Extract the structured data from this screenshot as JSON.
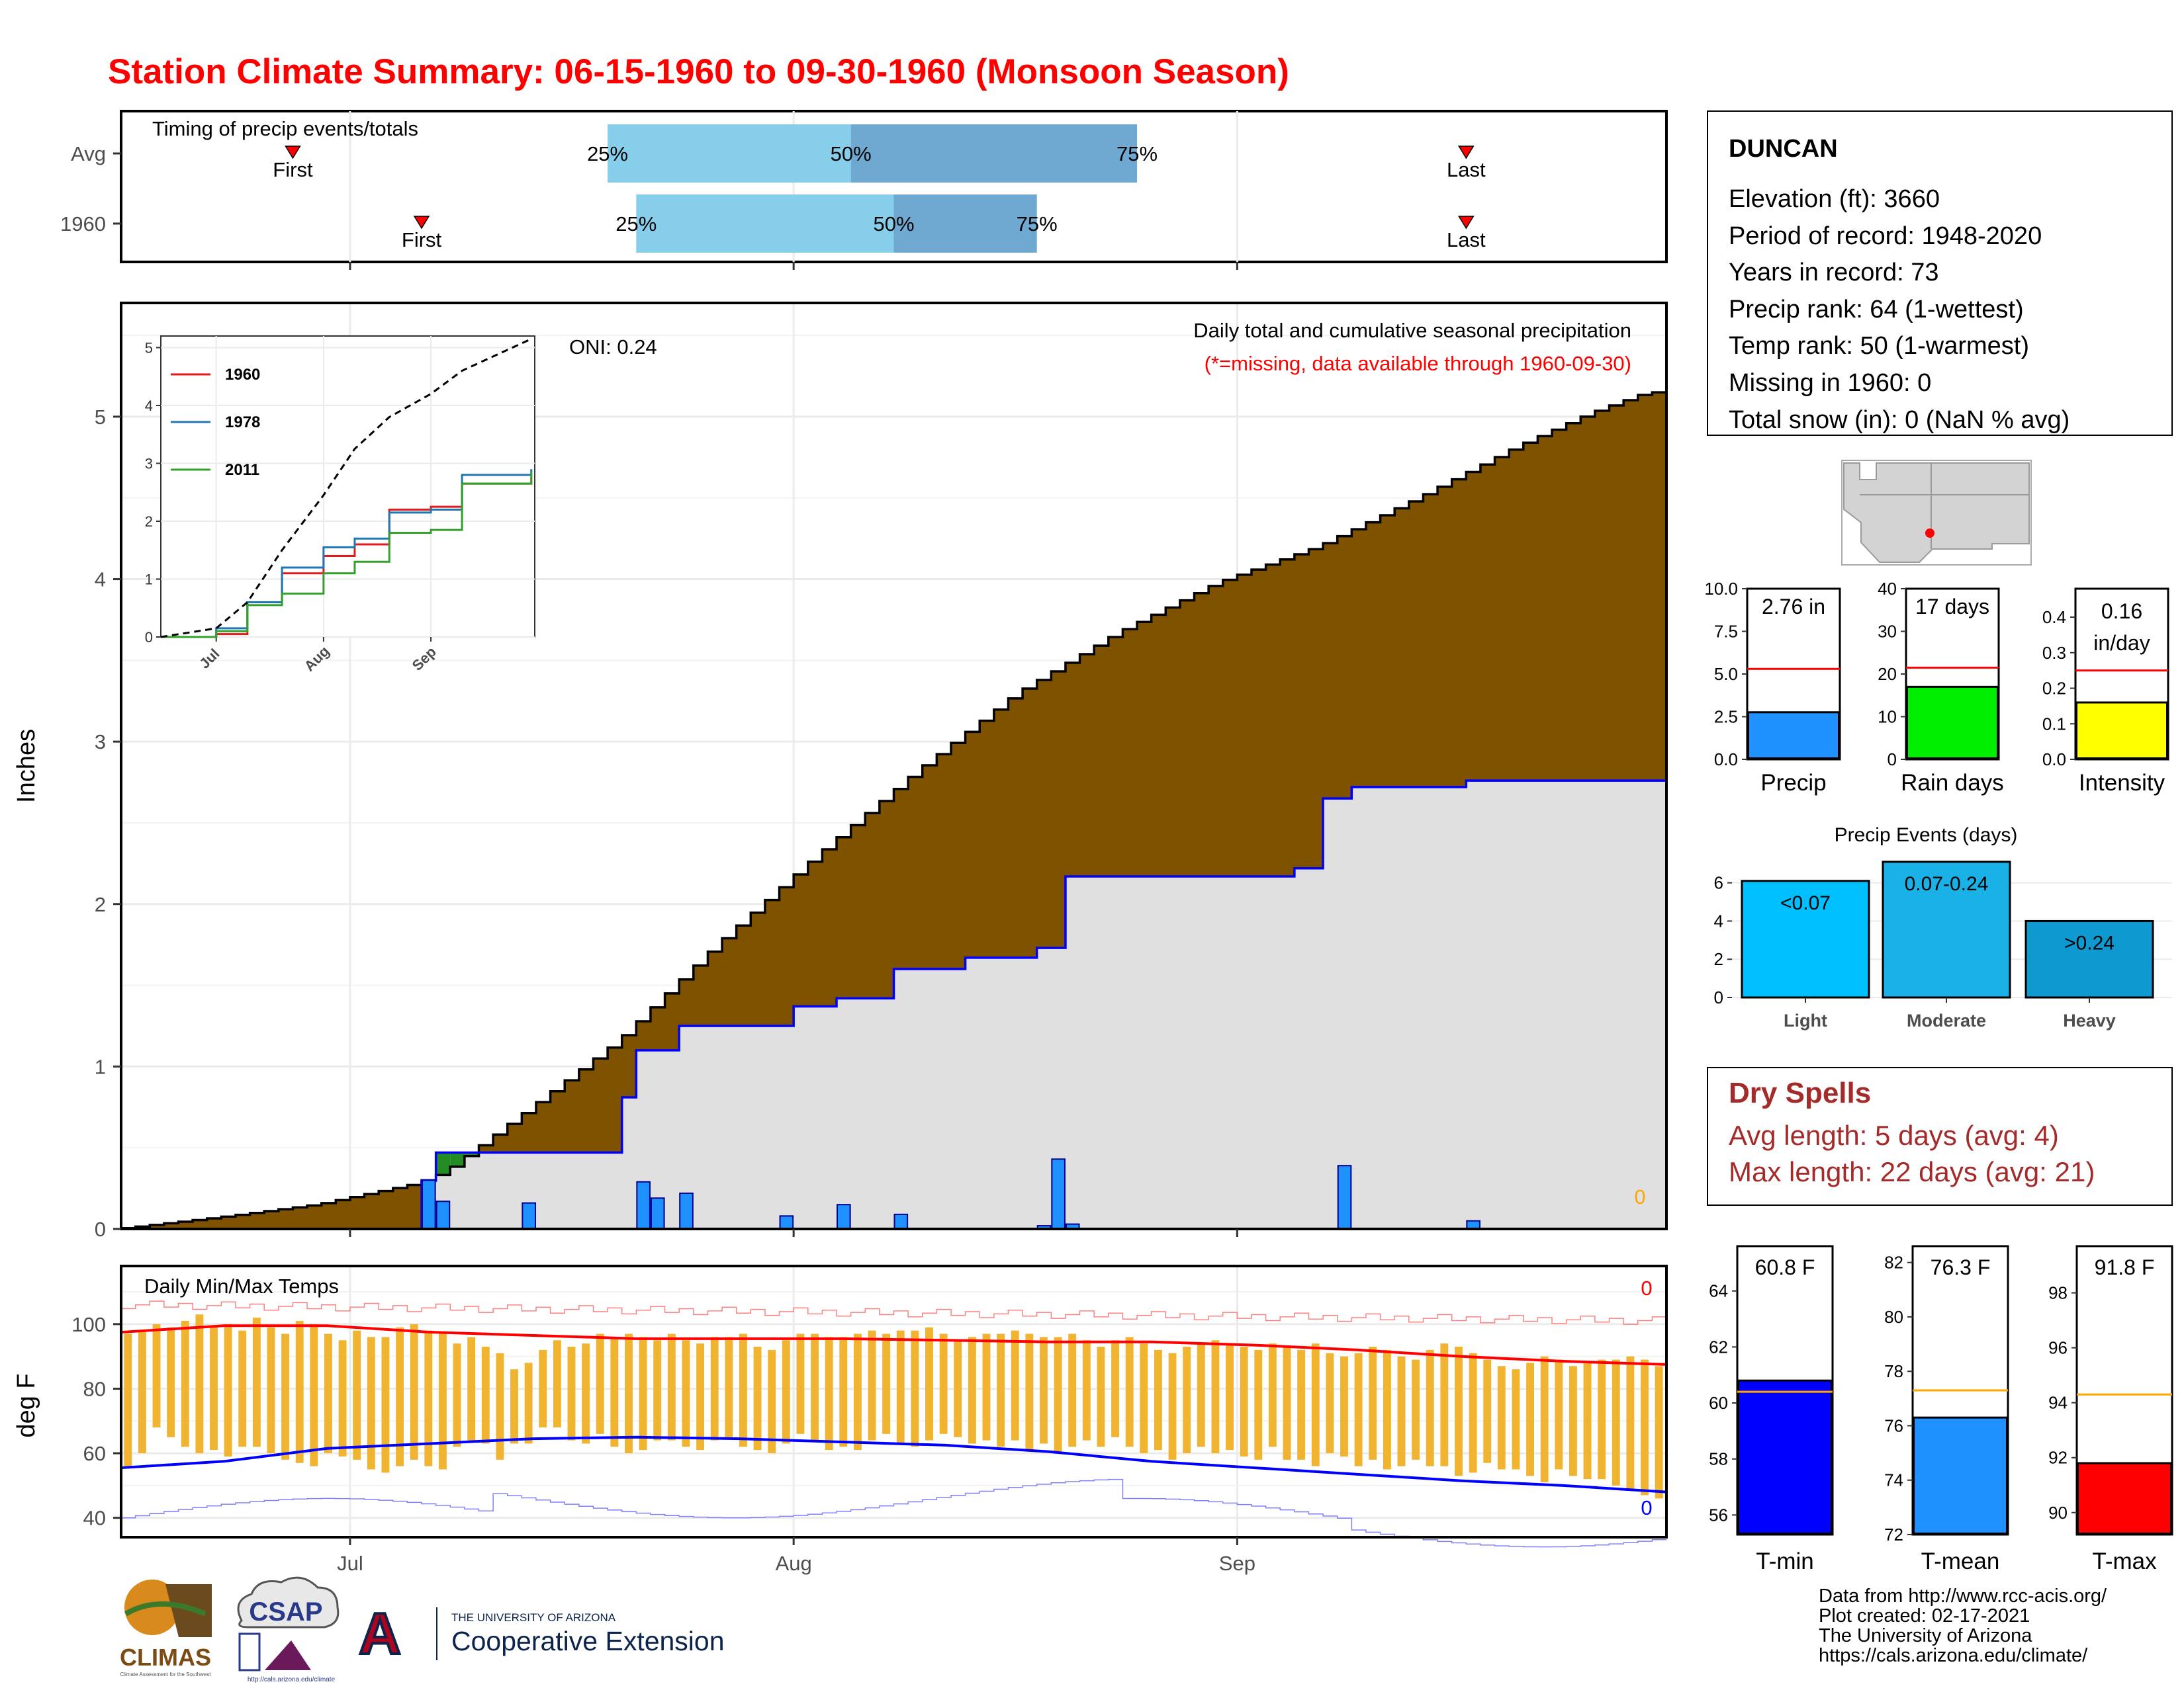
{
  "title": "Station Climate Summary: 06-15-1960 to 09-30-1960 (Monsoon Season)",
  "colors": {
    "title": "#ff0000",
    "cumulative_avg_fill": "#7f5200",
    "cumulative_year_fill": "#e0e0e0",
    "cumulative_year_line": "#0000ff",
    "daily_bar": "#1e90ff",
    "early_excess": "#228b22",
    "temp_bar": "#f0b431",
    "tmax_line": "#ff0000",
    "tmin_line": "#0000ff",
    "quartile_light": "#87ceeb",
    "quartile_dark": "#6fa8d0",
    "dry_spell_text": "#a52a2a"
  },
  "timing_panel": {
    "label": "Timing of precip events/totals",
    "rows": [
      {
        "name": "Avg",
        "first": "06-27",
        "q25": "07-19",
        "q50": "08-05",
        "q75": "08-25",
        "last": "09-17"
      },
      {
        "name": "1960",
        "first": "07-06",
        "q25": "07-21",
        "q50": "08-08",
        "q75": "08-18",
        "last": "09-17"
      }
    ],
    "first_label": "First",
    "last_label": "Last",
    "q25_label": "25%",
    "q50_label": "50%",
    "q75_label": "75%"
  },
  "station": {
    "name": "DUNCAN",
    "lines": [
      "Elevation (ft): 3660",
      "Period of record: 1948-2020",
      "Years in record: 73",
      "Precip rank: 64 (1-wettest)",
      "Temp rank: 50 (1-warmest)",
      "Missing in 1960: 0",
      "Total snow (in): 0 (NaN % avg)"
    ]
  },
  "precip_panel": {
    "ylabel": "Inches",
    "yticks": [
      0,
      1,
      2,
      3,
      4,
      5
    ],
    "oni": "ONI: 0.24",
    "subtitle": "Daily total and cumulative seasonal precipitation",
    "missing_note": "(*=missing, data available through 1960-09-30)",
    "missing_count": "0"
  },
  "inset": {
    "legend": [
      "1960",
      "1978",
      "2011"
    ],
    "legend_colors": [
      "#e31a1c",
      "#1f78b4",
      "#33a02c"
    ],
    "yticks": [
      "0",
      "1",
      "2",
      "3",
      "4",
      "5"
    ],
    "xticks": [
      "Jul",
      "Aug",
      "Sep"
    ]
  },
  "mini_bars": [
    {
      "label": "Precip",
      "value_text": "2.76 in",
      "value": 2.76,
      "avg": 5.3,
      "ymax": 10.0,
      "yticks": [
        "0.0",
        "2.5",
        "5.0",
        "7.5",
        "10.0"
      ],
      "tickvals": [
        0,
        2.5,
        5,
        7.5,
        10
      ],
      "color": "#1e90ff"
    },
    {
      "label": "Rain days",
      "value_text": "17 days",
      "value": 17,
      "avg": 21.5,
      "ymax": 40,
      "yticks": [
        "0",
        "10",
        "20",
        "30",
        "40"
      ],
      "tickvals": [
        0,
        10,
        20,
        30,
        40
      ],
      "color": "#00ee00"
    },
    {
      "label": "Intensity",
      "value_text": "0.16",
      "value_text2": "in/day",
      "value": 0.16,
      "avg": 0.25,
      "ymax": 0.48,
      "yticks": [
        "0.0",
        "0.1",
        "0.2",
        "0.3",
        "0.4"
      ],
      "tickvals": [
        0,
        0.1,
        0.2,
        0.3,
        0.4
      ],
      "color": "#ffff00"
    }
  ],
  "events": {
    "title": "Precip Events (days)",
    "yticks": [
      "0",
      "2",
      "4",
      "6"
    ],
    "bars": [
      {
        "label": "Light",
        "range": "<0.07",
        "value": 6.1,
        "color": "#00bfff"
      },
      {
        "label": "Moderate",
        "range": "0.07-0.24",
        "value": 7.1,
        "color": "#1ab2e6"
      },
      {
        "label": "Heavy",
        "range": ">0.24",
        "value": 4.0,
        "color": "#0e9ad0"
      }
    ]
  },
  "dry_spells": {
    "title": "Dry Spells",
    "avg_line": "Avg length: 5 days (avg: 4)",
    "max_line": "Max length: 22 days (avg: 21)"
  },
  "temp_panel": {
    "label": "Daily Min/Max Temps",
    "ylabel": "deg F",
    "yticks": [
      40,
      60,
      80,
      100
    ],
    "missing_tmax": "0",
    "missing_tmin": "0"
  },
  "xaxis": {
    "ticks": [
      "Jul",
      "Aug",
      "Sep"
    ]
  },
  "temp_bars": [
    {
      "label": "T-min",
      "value_text": "60.8 F",
      "value": 60.8,
      "avg": 60.4,
      "ymin": 55.3,
      "ymax": 65.6,
      "ticks": [
        "56",
        "58",
        "60",
        "62",
        "64"
      ],
      "tickvals": [
        56,
        58,
        60,
        62,
        64
      ],
      "color": "#0000ff"
    },
    {
      "label": "T-mean",
      "value_text": "76.3 F",
      "value": 76.3,
      "avg": 77.3,
      "ymin": 72,
      "ymax": 82.6,
      "ticks": [
        "72",
        "74",
        "76",
        "78",
        "80",
        "82"
      ],
      "tickvals": [
        72,
        74,
        76,
        78,
        80,
        82
      ],
      "color": "#1e90ff"
    },
    {
      "label": "T-max",
      "value_text": "91.8 F",
      "value": 91.8,
      "avg": 94.3,
      "ymin": 89.2,
      "ymax": 99.7,
      "ticks": [
        "90",
        "92",
        "94",
        "96",
        "98"
      ],
      "tickvals": [
        90,
        92,
        94,
        96,
        98
      ],
      "color": "#ff0000"
    }
  ],
  "footer": {
    "lines": [
      "Data from http://www.rcc-acis.org/",
      "Plot created: 02-17-2021",
      "The University of Arizona",
      "https://cals.arizona.edu/climate/"
    ],
    "logos": {
      "climas": "CLIMAS",
      "climas_tag": "Climate Assessment for the Southwest",
      "csap": "CSAP",
      "csap_url": "http://cals.arizona.edu/climate",
      "ua_letter": "A",
      "ua_line1": "THE UNIVERSITY OF ARIZONA",
      "ua_line2": "Cooperative Extension"
    }
  },
  "chart_data": [
    {
      "type": "area",
      "title": "Daily total and cumulative seasonal precipitation",
      "ylabel": "Inches",
      "ylim": [
        0,
        5.7
      ],
      "xlim": [
        "06-15",
        "09-30"
      ],
      "series": [
        {
          "name": "Average cumulative",
          "x": [
            "06-15",
            "06-22",
            "06-29",
            "07-06",
            "07-08",
            "07-13",
            "07-20",
            "07-27",
            "08-03",
            "08-10",
            "08-17",
            "08-24",
            "08-31",
            "09-07",
            "09-14",
            "09-21",
            "09-26",
            "09-30"
          ],
          "values": [
            0.0,
            0.07,
            0.15,
            0.28,
            0.35,
            0.68,
            1.15,
            1.75,
            2.3,
            2.82,
            3.3,
            3.67,
            3.98,
            4.2,
            4.5,
            4.82,
            5.02,
            5.15
          ]
        },
        {
          "name": "1960 cumulative",
          "x": [
            "06-15",
            "07-05",
            "07-06",
            "07-07",
            "07-13",
            "07-20",
            "07-21",
            "07-24",
            "08-01",
            "08-04",
            "08-08",
            "08-13",
            "08-18",
            "08-20",
            "09-05",
            "09-07",
            "09-09",
            "09-17",
            "09-30"
          ],
          "values": [
            0.0,
            0.0,
            0.3,
            0.47,
            0.47,
            0.81,
            1.1,
            1.25,
            1.37,
            1.42,
            1.6,
            1.67,
            1.73,
            2.17,
            2.22,
            2.65,
            2.72,
            2.76,
            2.76
          ]
        }
      ]
    },
    {
      "type": "bar",
      "title": "Daily precipitation 1960",
      "ylabel": "Inches",
      "x": [
        "07-06",
        "07-07",
        "07-13",
        "07-21",
        "07-22",
        "07-24",
        "07-31",
        "08-04",
        "08-08",
        "08-18",
        "08-19",
        "08-20",
        "09-08",
        "09-17"
      ],
      "values": [
        0.3,
        0.17,
        0.16,
        0.29,
        0.19,
        0.22,
        0.08,
        0.15,
        0.09,
        0.02,
        0.43,
        0.03,
        0.39,
        0.05
      ]
    },
    {
      "type": "line",
      "title": "Cumulative precipitation, selected years",
      "ylim": [
        0,
        5.2
      ],
      "series": [
        {
          "name": "1960",
          "x": [
            "06-15",
            "07-01",
            "07-10",
            "07-20",
            "08-01",
            "08-10",
            "08-20",
            "09-01",
            "09-10",
            "09-30"
          ],
          "values": [
            0,
            0.05,
            0.6,
            1.1,
            1.4,
            1.6,
            2.2,
            2.25,
            2.65,
            2.76
          ]
        },
        {
          "name": "1978",
          "x": [
            "06-15",
            "07-01",
            "07-10",
            "07-20",
            "08-01",
            "08-10",
            "08-20",
            "09-01",
            "09-10",
            "09-30"
          ],
          "values": [
            0,
            0.15,
            0.6,
            1.2,
            1.55,
            1.7,
            2.15,
            2.2,
            2.8,
            2.9
          ]
        },
        {
          "name": "2011",
          "x": [
            "06-15",
            "07-01",
            "07-10",
            "07-20",
            "08-01",
            "08-10",
            "08-20",
            "09-01",
            "09-10",
            "09-30"
          ],
          "values": [
            0,
            0.1,
            0.55,
            0.75,
            1.1,
            1.3,
            1.8,
            1.85,
            2.65,
            2.85
          ]
        },
        {
          "name": "",
          "x": [
            "06-15",
            "07-01",
            "07-10",
            "07-20",
            "08-01",
            "08-10",
            "08-20",
            "09-01",
            "09-10",
            "09-30"
          ],
          "values": [
            0,
            0.15,
            0.6,
            1.5,
            2.45,
            3.25,
            3.8,
            4.2,
            4.6,
            5.15
          ]
        }
      ]
    },
    {
      "type": "bar",
      "title": "Daily Min/Max Temps",
      "ylabel": "deg F",
      "ylim": [
        34,
        118
      ],
      "series": [
        {
          "name": "Tmax",
          "values": [
            97,
            98,
            100,
            99,
            101,
            103,
            99,
            100,
            98,
            102,
            99,
            97,
            101,
            100,
            97,
            95,
            98,
            96,
            96,
            99,
            100,
            98,
            97,
            94,
            96,
            93,
            91,
            86,
            88,
            92,
            95,
            93,
            94,
            97,
            96,
            97,
            96,
            95,
            97,
            95,
            94,
            96,
            96,
            97,
            93,
            92,
            95,
            97,
            97,
            96,
            96,
            97,
            98,
            97,
            98,
            98,
            99,
            97,
            95,
            96,
            97,
            97,
            98,
            97,
            96,
            96,
            97,
            95,
            93,
            95,
            96,
            94,
            92,
            91,
            93,
            94,
            95,
            94,
            93,
            92,
            94,
            93,
            92,
            94,
            91,
            90,
            91,
            93,
            92,
            90,
            89,
            92,
            94,
            93,
            91,
            89,
            87,
            86,
            88,
            90,
            89,
            87,
            88,
            89,
            89,
            90,
            89,
            87
          ]
        },
        {
          "name": "Tmin",
          "values": [
            56,
            60,
            68,
            65,
            62,
            60,
            61,
            59,
            62,
            62,
            60,
            58,
            57,
            56,
            60,
            59,
            58,
            55,
            54,
            56,
            58,
            56,
            55,
            62,
            64,
            63,
            58,
            63,
            63,
            68,
            68,
            64,
            63,
            66,
            62,
            60,
            61,
            64,
            64,
            62,
            61,
            64,
            65,
            62,
            61,
            60,
            63,
            66,
            64,
            61,
            62,
            61,
            64,
            66,
            63,
            62,
            64,
            66,
            65,
            63,
            64,
            62,
            64,
            61,
            63,
            60,
            62,
            64,
            62,
            65,
            62,
            60,
            61,
            58,
            60,
            62,
            60,
            61,
            59,
            58,
            62,
            58,
            58,
            56,
            60,
            59,
            56,
            58,
            55,
            56,
            58,
            56,
            56,
            53,
            54,
            57,
            55,
            55,
            53,
            51,
            55,
            53,
            52,
            52,
            50,
            49,
            47,
            46
          ]
        },
        {
          "name": "Avg Tmax",
          "values": [
            97.5,
            99.5,
            99.5,
            97.5,
            96.5,
            95.5,
            95.5,
            95.5,
            95,
            94.5,
            94.5,
            93.5,
            92,
            90,
            88.5,
            87.5
          ]
        },
        {
          "name": "Avg Tmin",
          "values": [
            55.5,
            57.5,
            61.5,
            63,
            64.5,
            65,
            64.5,
            63.5,
            62.5,
            60.5,
            57.5,
            55.5,
            53.5,
            51.5,
            50,
            48
          ]
        }
      ]
    },
    {
      "type": "bar",
      "title": "Precip Events (days)",
      "categories": [
        "Light",
        "Moderate",
        "Heavy"
      ],
      "values": [
        6.1,
        7.1,
        4.0
      ]
    }
  ]
}
